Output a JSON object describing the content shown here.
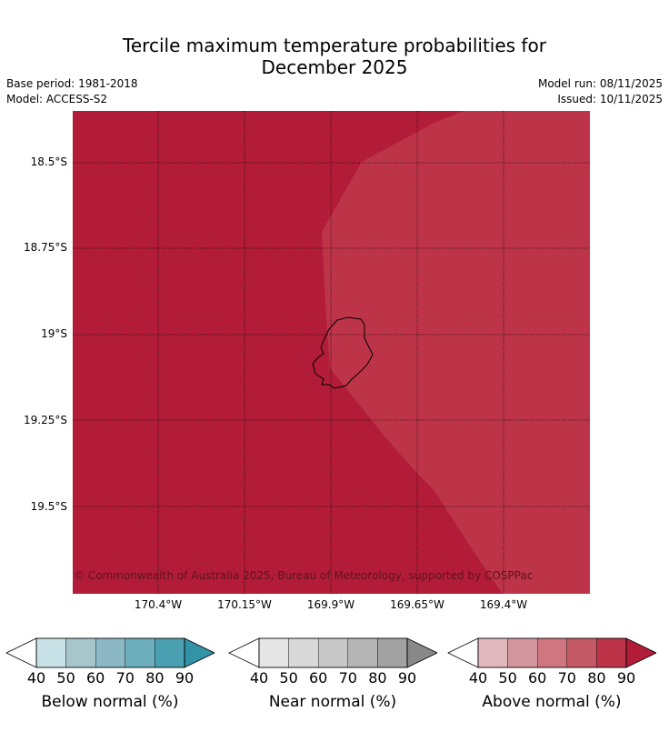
{
  "title": {
    "line1": "Tercile maximum temperature probabilities for",
    "line2": "December 2025"
  },
  "meta": {
    "base_period": "Base period: 1981-2018",
    "model": "Model: ACCESS-S2",
    "model_run": "Model run: 08/11/2025",
    "issued": "Issued: 10/11/2025"
  },
  "map": {
    "copyright": "© Commonwealth of Australia 2025, Bureau of Meteorology, supported by COSPPac",
    "lat_labels": [
      "18.5°S",
      "18.75°S",
      "19°S",
      "19.25°S",
      "19.5°S"
    ],
    "lon_labels": [
      "170.4°W",
      "170.15°W",
      "169.9°W",
      "169.65°W",
      "169.4°W"
    ],
    "colors": {
      "above_90": "#b21c38",
      "above_80": "#bd3449",
      "island_outline": "#000000"
    }
  },
  "colorbars": [
    {
      "label": "Below normal (%)",
      "ticks": [
        "40",
        "50",
        "60",
        "70",
        "80",
        "90"
      ],
      "colors": [
        "#c7e1e7",
        "#a6c6cc",
        "#8bb8c4",
        "#6daebc",
        "#4a9fb0"
      ],
      "extend_color": "#3193a5"
    },
    {
      "label": "Near normal (%)",
      "ticks": [
        "40",
        "50",
        "60",
        "70",
        "80",
        "90"
      ],
      "colors": [
        "#e6e6e6",
        "#d8d8d8",
        "#c8c8c8",
        "#b5b5b5",
        "#a2a2a2"
      ],
      "extend_color": "#888888"
    },
    {
      "label": "Above normal (%)",
      "ticks": [
        "40",
        "50",
        "60",
        "70",
        "80",
        "90"
      ],
      "colors": [
        "#e0b8be",
        "#d4979f",
        "#cf7681",
        "#c45a66",
        "#bd3449"
      ],
      "extend_color": "#b21c38"
    }
  ]
}
